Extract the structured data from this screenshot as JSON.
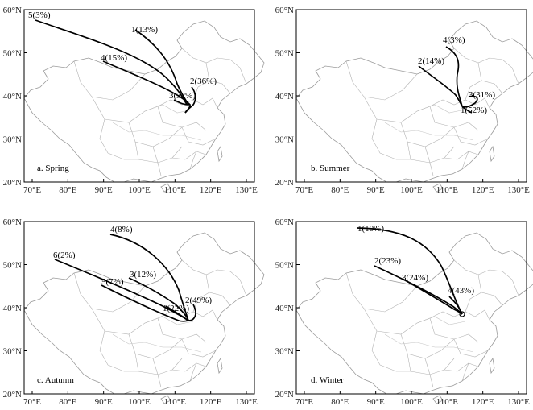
{
  "axes": {
    "x_ticks": [
      "70°E",
      "80°E",
      "90°E",
      "100°E",
      "110°E",
      "120°E",
      "130°E"
    ],
    "y_ticks": [
      "20°N",
      "30°N",
      "40°N",
      "50°N",
      "60°N"
    ]
  },
  "panels": [
    {
      "caption": "a. Spring",
      "trajectories": [
        {
          "label": "1(13%)"
        },
        {
          "label": "2(36%)"
        },
        {
          "label": "3(32%)"
        },
        {
          "label": "4(15%)"
        },
        {
          "label": "5(3%)"
        }
      ]
    },
    {
      "caption": "b. Summer",
      "trajectories": [
        {
          "label": "1(52%)"
        },
        {
          "label": "2(14%)"
        },
        {
          "label": "3(31%)"
        },
        {
          "label": "4(3%)"
        }
      ]
    },
    {
      "caption": "c. Autumn",
      "trajectories": [
        {
          "label": "1(22%)"
        },
        {
          "label": "2(49%)"
        },
        {
          "label": "3(12%)"
        },
        {
          "label": "4(8%)"
        },
        {
          "label": "5(7%)"
        },
        {
          "label": "6(2%)"
        }
      ]
    },
    {
      "caption": "d. Winter",
      "trajectories": [
        {
          "label": "1(10%)"
        },
        {
          "label": "2(23%)"
        },
        {
          "label": "3(24%)"
        },
        {
          "label": "4(43%)"
        }
      ]
    }
  ],
  "colors": {
    "trajectory": "#000000",
    "border": "#9a9a9a",
    "province": "#b3b3b3"
  }
}
